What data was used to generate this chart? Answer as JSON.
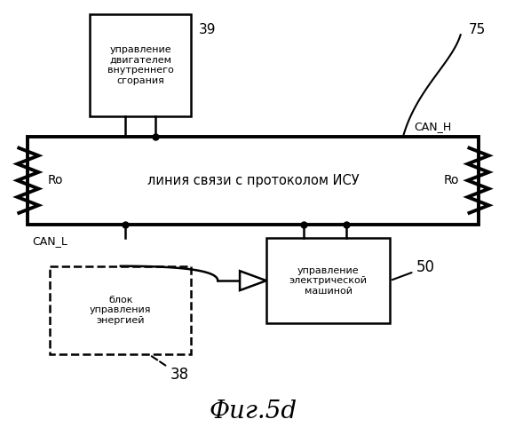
{
  "title": "Фиг.5d",
  "bus_text": "линия связи с протоколом ИСУ",
  "can_h_label": "CAN_H",
  "can_l_label": "CAN_L",
  "box39_text": "управление\nдвигателем\nвнутреннего\nсгорания",
  "box39_label": "39",
  "box50_text": "управление\nэлектрической\nмашиной",
  "box50_label": "50",
  "box38_text": "блок\nуправления\nэнергией",
  "box38_label": "38",
  "label75": "75",
  "ro_left": "Ro",
  "ro_right": "Ro",
  "bg_color": "#ffffff",
  "line_color": "#000000"
}
